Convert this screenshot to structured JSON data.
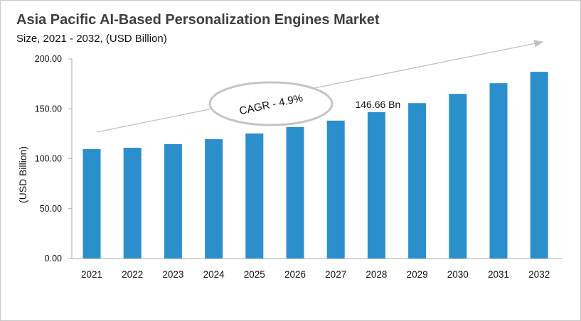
{
  "chart_data": {
    "type": "bar",
    "title": "Asia Pacific AI-Based Personalization Engines Market",
    "subtitle": "Size, 2021 - 2032, (USD Billion)",
    "xlabel": "",
    "ylabel": "(USD Billion)",
    "ylim": [
      0,
      200
    ],
    "yticks": [
      "0.00",
      "50.00",
      "100.00",
      "150.00",
      "200.00"
    ],
    "categories": [
      "2021",
      "2022",
      "2023",
      "2024",
      "2025",
      "2026",
      "2027",
      "2028",
      "2029",
      "2030",
      "2031",
      "2032"
    ],
    "values": [
      109.6,
      111.0,
      114.6,
      119.6,
      125.3,
      131.8,
      138.2,
      146.66,
      155.7,
      165.0,
      175.7,
      187.1
    ],
    "data_label": {
      "category": "2028",
      "text": "146.66 Bn"
    },
    "annotation": "CAGR - 4.9%",
    "grid": false,
    "bar_color": "#2b8fcc"
  }
}
